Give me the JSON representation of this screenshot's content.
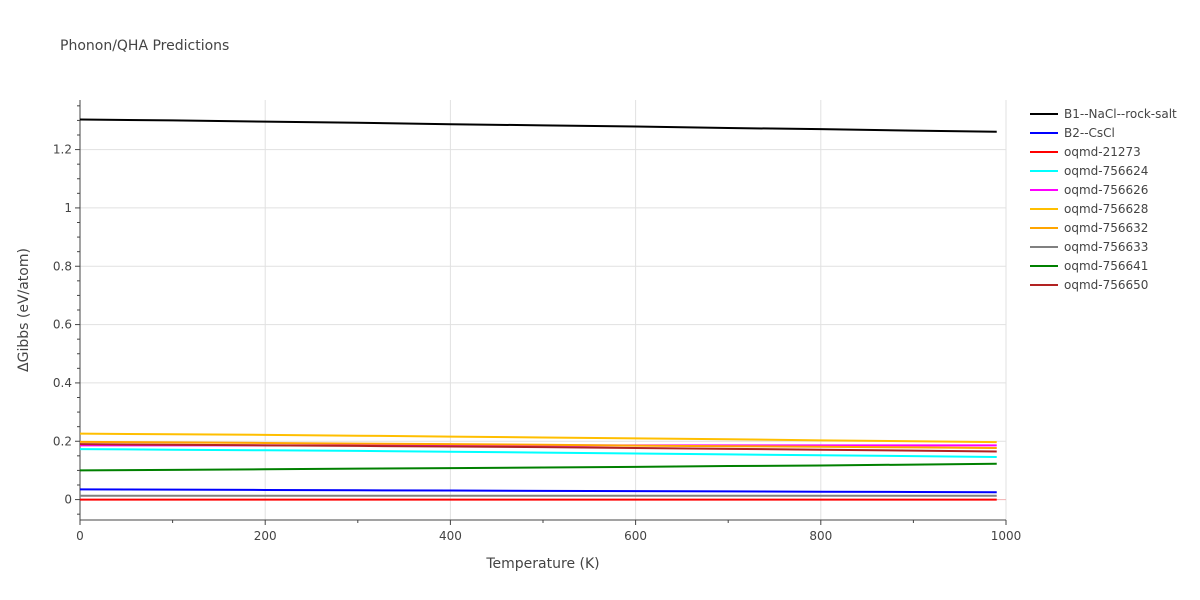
{
  "chart_data": {
    "type": "line",
    "title": "Phonon/QHA Predictions",
    "xlabel": "Temperature (K)",
    "ylabel": "ΔGibbs (eV/atom)",
    "xlim": [
      0,
      1000
    ],
    "ylim": [
      -0.07,
      1.37
    ],
    "xticks": [
      0,
      200,
      400,
      600,
      800,
      1000
    ],
    "yticks": [
      0,
      0.2,
      0.4,
      0.6,
      0.8,
      1,
      1.2
    ],
    "xtick_labels": [
      "0",
      "200",
      "400",
      "600",
      "800",
      "1000"
    ],
    "ytick_labels": [
      "0",
      "0.2",
      "0.4",
      "0.6",
      "0.8",
      "1",
      "1.2"
    ],
    "grid": true,
    "legend_position": "right",
    "x": [
      0,
      100,
      200,
      300,
      400,
      500,
      600,
      700,
      800,
      900,
      990
    ],
    "series": [
      {
        "name": "B1--NaCl--rock-salt",
        "color": "#000000",
        "values": [
          1.303,
          1.3,
          1.296,
          1.292,
          1.287,
          1.283,
          1.279,
          1.274,
          1.27,
          1.265,
          1.261
        ]
      },
      {
        "name": "B2--CsCl",
        "color": "#0000ff",
        "values": [
          0.035,
          0.034,
          0.033,
          0.032,
          0.031,
          0.03,
          0.029,
          0.028,
          0.027,
          0.026,
          0.025
        ]
      },
      {
        "name": "oqmd-21273",
        "color": "#ff0000",
        "values": [
          0.0,
          0.0,
          0.0,
          0.0,
          0.0,
          0.0,
          0.0,
          0.0,
          0.0,
          0.0,
          0.0
        ]
      },
      {
        "name": "oqmd-756624",
        "color": "#00ffff",
        "values": [
          0.173,
          0.171,
          0.169,
          0.167,
          0.164,
          0.161,
          0.158,
          0.155,
          0.152,
          0.149,
          0.146
        ]
      },
      {
        "name": "oqmd-756626",
        "color": "#ff00ff",
        "values": [
          0.186,
          0.186,
          0.186,
          0.186,
          0.186,
          0.186,
          0.186,
          0.186,
          0.186,
          0.186,
          0.186
        ]
      },
      {
        "name": "oqmd-756628",
        "color": "#ffbf00",
        "values": [
          0.226,
          0.224,
          0.222,
          0.219,
          0.216,
          0.213,
          0.21,
          0.207,
          0.203,
          0.2,
          0.197
        ]
      },
      {
        "name": "oqmd-756632",
        "color": "#ffa500",
        "values": [
          0.198,
          0.196,
          0.194,
          0.192,
          0.19,
          0.188,
          0.185,
          0.183,
          0.181,
          0.179,
          0.177
        ]
      },
      {
        "name": "oqmd-756633",
        "color": "#808080",
        "values": [
          0.013,
          0.013,
          0.013,
          0.013,
          0.013,
          0.013,
          0.013,
          0.013,
          0.013,
          0.013,
          0.013
        ]
      },
      {
        "name": "oqmd-756641",
        "color": "#008000",
        "values": [
          0.1,
          0.102,
          0.104,
          0.106,
          0.108,
          0.11,
          0.112,
          0.115,
          0.117,
          0.12,
          0.123
        ]
      },
      {
        "name": "oqmd-756650",
        "color": "#b22222",
        "values": [
          0.19,
          0.188,
          0.186,
          0.184,
          0.182,
          0.18,
          0.177,
          0.174,
          0.171,
          0.168,
          0.165
        ]
      }
    ]
  }
}
